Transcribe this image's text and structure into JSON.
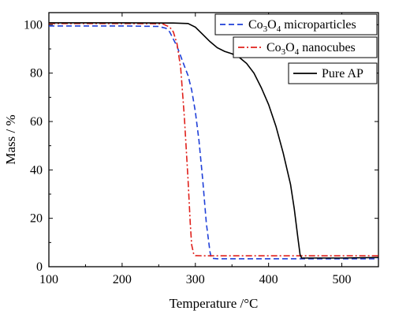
{
  "chart_data": {
    "type": "line",
    "xlabel": "Temperature /°C",
    "ylabel": "Mass / %",
    "xlim": [
      100,
      550
    ],
    "ylim": [
      0,
      105
    ],
    "xticks": [
      100,
      200,
      300,
      400,
      500
    ],
    "yticks": [
      0,
      20,
      40,
      60,
      80,
      100
    ],
    "grid": false,
    "legend_position": "top-right",
    "series": [
      {
        "name": "Co3O4 microparticles",
        "legend_parts": [
          "Co",
          "3",
          "O",
          "4",
          " microparticles"
        ],
        "color": "#1f3fd8",
        "style": "dashed",
        "x": [
          100,
          200,
          250,
          260,
          265,
          270,
          275,
          280,
          285,
          290,
          295,
          300,
          305,
          310,
          315,
          320,
          322,
          330,
          400,
          550
        ],
        "y": [
          99.5,
          99.5,
          99.3,
          98.5,
          97,
          94,
          91,
          87,
          83,
          79,
          73,
          64,
          52,
          36,
          18,
          6,
          3.5,
          3.3,
          3.3,
          3.3
        ]
      },
      {
        "name": "Co3O4 nanocubes",
        "legend_parts": [
          "Co",
          "3",
          "O",
          "4",
          " nanocubes"
        ],
        "color": "#e0201b",
        "style": "dashdot",
        "x": [
          100,
          200,
          255,
          265,
          270,
          275,
          280,
          285,
          290,
          293,
          295,
          298,
          300,
          310,
          400,
          550
        ],
        "y": [
          100.5,
          100.5,
          100.4,
          99,
          97,
          92,
          82,
          62,
          36,
          18,
          9,
          5,
          4.6,
          4.5,
          4.5,
          4.5
        ],
        "segment_note": ""
      },
      {
        "name": "Pure AP",
        "legend_parts": [
          "Pure AP"
        ],
        "color": "#000000",
        "style": "solid",
        "x": [
          100,
          200,
          270,
          290,
          300,
          310,
          320,
          330,
          340,
          350,
          360,
          370,
          380,
          390,
          400,
          410,
          420,
          430,
          435,
          440,
          443,
          445,
          500,
          550
        ],
        "y": [
          100.8,
          100.8,
          100.7,
          100.5,
          99,
          96,
          93,
          90.5,
          89,
          88,
          86.5,
          84,
          80,
          74,
          67,
          58,
          47,
          34,
          24,
          12,
          5,
          3.6,
          3.6,
          3.8
        ]
      }
    ]
  }
}
